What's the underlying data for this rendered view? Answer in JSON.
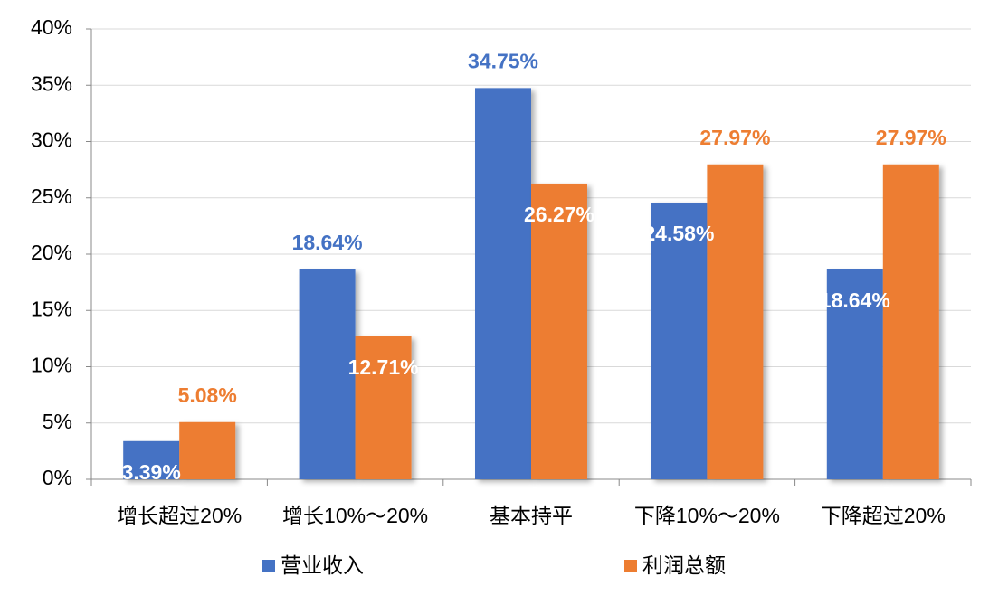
{
  "chart_data": {
    "type": "bar",
    "categories": [
      "增长超过20%",
      "增长10%～20%",
      "基本持平",
      "下降10%～20%",
      "下降超过20%"
    ],
    "series": [
      {
        "name": "营业收入",
        "color": "#4472c4",
        "values": [
          3.39,
          18.64,
          34.75,
          24.58,
          18.64
        ],
        "value_labels": [
          "3.39%",
          "18.64%",
          "34.75%",
          "24.58%",
          "18.64%"
        ]
      },
      {
        "name": "利润总额",
        "color": "#ed7d31",
        "values": [
          5.08,
          12.71,
          26.27,
          27.97,
          27.97
        ],
        "value_labels": [
          "5.08%",
          "12.71%",
          "26.27%",
          "27.97%",
          "27.97%"
        ]
      }
    ],
    "ylim": [
      0,
      40
    ],
    "yticks": [
      {
        "value": 0,
        "label": "0%"
      },
      {
        "value": 5,
        "label": "5%"
      },
      {
        "value": 10,
        "label": "10%"
      },
      {
        "value": 15,
        "label": "15%"
      },
      {
        "value": 20,
        "label": "20%"
      },
      {
        "value": 25,
        "label": "25%"
      },
      {
        "value": 30,
        "label": "30%"
      },
      {
        "value": 35,
        "label": "35%"
      },
      {
        "value": 40,
        "label": "40%"
      }
    ],
    "grid": true,
    "legend": "bottom"
  }
}
